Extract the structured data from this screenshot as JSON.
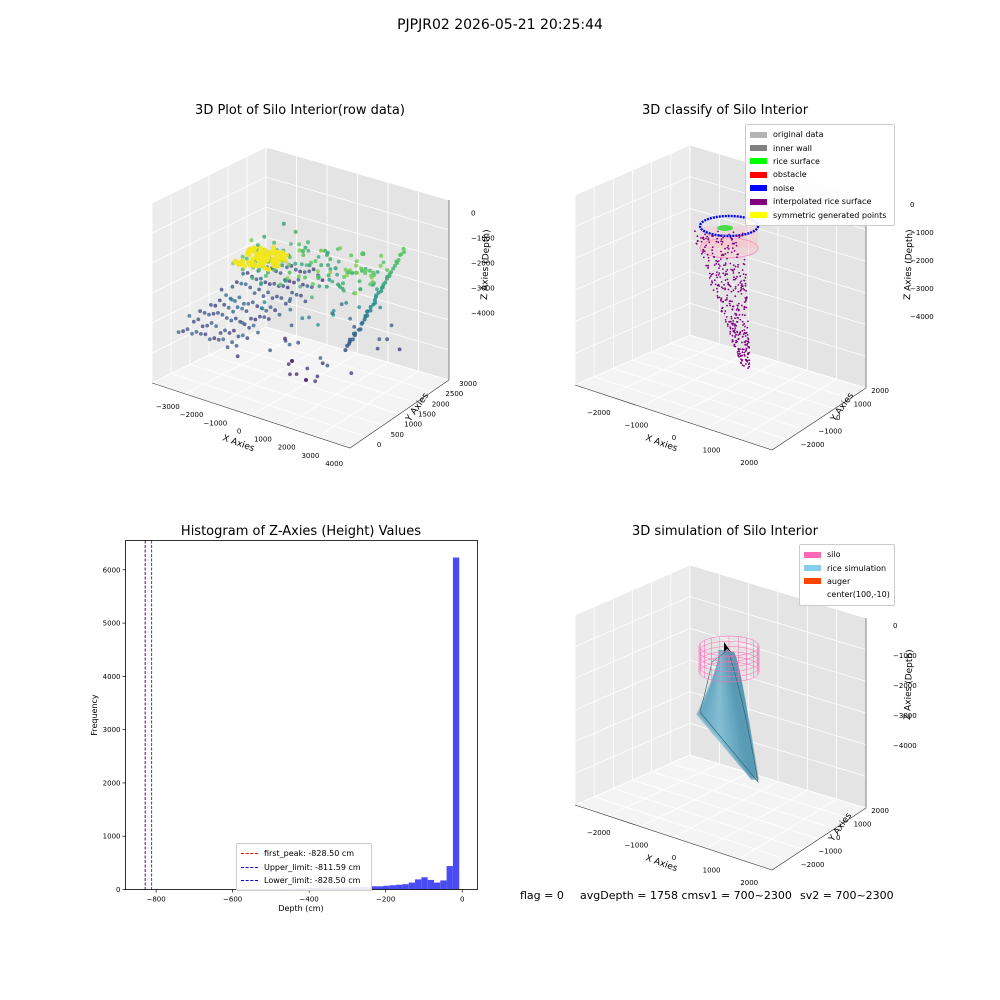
{
  "figure": {
    "suptitle": "PJPJR02 2026-05-21 20:25:44"
  },
  "chart_data": [
    {
      "type": "scatter",
      "id": "raw",
      "title": "3D Plot of Silo Interior(row data)",
      "xlabel": "X Axies",
      "ylabel": "Y Axies",
      "zlabel": "Z Axies (Depth)",
      "x_ticks": [
        "−3000",
        "−2000",
        "−1000",
        "0",
        "1000",
        "2000",
        "3000",
        "4000"
      ],
      "y_ticks": [
        "0",
        "500",
        "1000",
        "1500",
        "2000",
        "2500",
        "3000"
      ],
      "z_ticks": [
        "0",
        "−1000",
        "−2000",
        "−3000",
        "−4000"
      ],
      "colormap": [
        "#440154",
        "#3b528b",
        "#21918c",
        "#5ec962",
        "#fde725"
      ],
      "description_series": "row-data point cloud colored by depth"
    },
    {
      "type": "scatter",
      "id": "classify",
      "title": "3D classify of Silo Interior",
      "xlabel": "X Axies",
      "ylabel": "Y Axies",
      "zlabel": "Z Axies (Depth)",
      "x_ticks": [
        "−2000",
        "−1000",
        "0",
        "1000",
        "2000"
      ],
      "y_ticks": [
        "−2000",
        "−1000",
        "0",
        "1000",
        "2000"
      ],
      "z_ticks": [
        "0",
        "−1000",
        "−2000",
        "−3000",
        "−4000"
      ],
      "legend": [
        {
          "label": "original data",
          "color": "#b3b3b3"
        },
        {
          "label": "inner wall",
          "color": "#808080"
        },
        {
          "label": "rice surface",
          "color": "#00ff00"
        },
        {
          "label": "obstacle",
          "color": "#ff0000"
        },
        {
          "label": "noise",
          "color": "#0000ff"
        },
        {
          "label": "interpolated rice surface",
          "color": "#800080"
        },
        {
          "label": "symmetric generated points",
          "color": "#ffff00"
        }
      ]
    },
    {
      "type": "bar",
      "id": "hist",
      "title": "Histogram of Z-Axies (Height) Values",
      "xlabel": "Depth (cm)",
      "ylabel": "Frequency",
      "xlim": [
        -880,
        40
      ],
      "ylim": [
        0,
        6550
      ],
      "x_ticks": [
        -800,
        -600,
        -400,
        -200,
        0
      ],
      "x_tick_labels": [
        "−800",
        "−600",
        "−400",
        "−200",
        "0"
      ],
      "y_ticks": [
        0,
        1000,
        2000,
        3000,
        4000,
        5000,
        6000
      ],
      "bar_color": "#4b4bf4",
      "bin_width": 16.5,
      "bins": [
        {
          "x": -511,
          "count": 8
        },
        {
          "x": -494.5,
          "count": 10
        },
        {
          "x": -478,
          "count": 12
        },
        {
          "x": -461.5,
          "count": 15
        },
        {
          "x": -445,
          "count": 20
        },
        {
          "x": -428.5,
          "count": 25
        },
        {
          "x": -412,
          "count": 25
        },
        {
          "x": -395.5,
          "count": 30
        },
        {
          "x": -379,
          "count": 35
        },
        {
          "x": -362.5,
          "count": 40
        },
        {
          "x": -346,
          "count": 35
        },
        {
          "x": -329.5,
          "count": 40
        },
        {
          "x": -313,
          "count": 40
        },
        {
          "x": -296.5,
          "count": 45
        },
        {
          "x": -280,
          "count": 45
        },
        {
          "x": -263.5,
          "count": 50
        },
        {
          "x": -247,
          "count": 55
        },
        {
          "x": -230.5,
          "count": 60
        },
        {
          "x": -214,
          "count": 60
        },
        {
          "x": -197.5,
          "count": 70
        },
        {
          "x": -181,
          "count": 80
        },
        {
          "x": -164.5,
          "count": 90
        },
        {
          "x": -148,
          "count": 100
        },
        {
          "x": -131.5,
          "count": 130
        },
        {
          "x": -115,
          "count": 190
        },
        {
          "x": -98.5,
          "count": 230
        },
        {
          "x": -82,
          "count": 180
        },
        {
          "x": -65.5,
          "count": 130
        },
        {
          "x": -49,
          "count": 170
        },
        {
          "x": -32.5,
          "count": 440
        },
        {
          "x": -16,
          "count": 6230
        }
      ],
      "vlines": [
        {
          "label": "first_peak: -828.50 cm",
          "x": -828.5,
          "color": "#ff0000"
        },
        {
          "label": "Upper_limit: -811.59 cm",
          "x": -811.59,
          "color": "#0000ff"
        },
        {
          "label": "Lower_limit: -828.50 cm",
          "x": -828.5,
          "color": "#0000ff"
        }
      ]
    },
    {
      "type": "area",
      "id": "sim",
      "title": "3D simulation of Silo Interior",
      "xlabel": "X Axies",
      "ylabel": "Y Axies",
      "zlabel": "Z Axies (Depth)",
      "x_ticks": [
        "−2000",
        "−1000",
        "0",
        "1000",
        "2000"
      ],
      "y_ticks": [
        "−2000",
        "−1000",
        "0",
        "1000",
        "2000"
      ],
      "z_ticks": [
        "0",
        "−1000",
        "−2000",
        "−3000",
        "−4000"
      ],
      "legend": [
        {
          "label": "silo",
          "color": "#ff69b4"
        },
        {
          "label": "rice simulation",
          "color": "#87ceeb"
        },
        {
          "label": "auger",
          "color": "#ff4500"
        },
        {
          "label": "center(100,-10)",
          "color": "none"
        }
      ]
    }
  ],
  "status": {
    "flag": "flag = 0",
    "avg": "avgDepth = 1758 cmsv1 = 700~2300",
    "sv2": "sv2 = 700~2300"
  }
}
